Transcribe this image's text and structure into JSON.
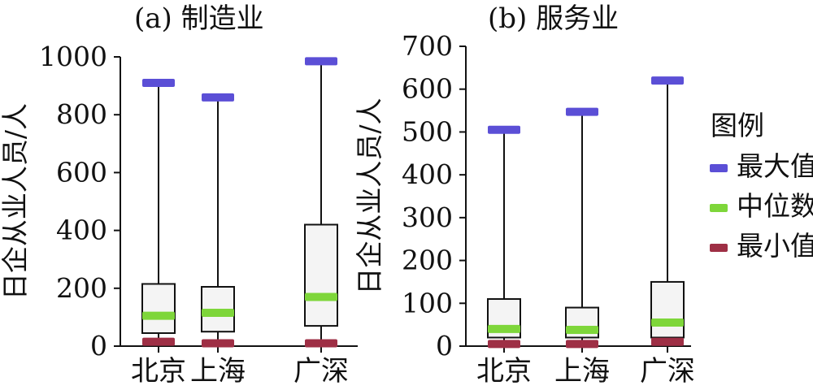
{
  "chart_data": [
    {
      "type": "box",
      "title": "(a) 制造业",
      "ylabel": "日企从业人员/人",
      "categories": [
        "北京",
        "上海",
        "广深"
      ],
      "ylim": [
        0,
        1000
      ],
      "yticks": [
        0,
        200,
        400,
        600,
        800,
        1000
      ],
      "boxes": [
        {
          "category": "北京",
          "min": 15,
          "q1": 45,
          "median": 105,
          "q3": 215,
          "max": 910
        },
        {
          "category": "上海",
          "min": 10,
          "q1": 50,
          "median": 115,
          "q3": 205,
          "max": 860
        },
        {
          "category": "广深",
          "min": 10,
          "q1": 70,
          "median": 170,
          "q3": 420,
          "max": 985
        }
      ]
    },
    {
      "type": "box",
      "title": "(b) 服务业",
      "ylabel": "日企从业人员/人",
      "categories": [
        "北京",
        "上海",
        "广深"
      ],
      "ylim": [
        0,
        700
      ],
      "yticks": [
        0,
        100,
        200,
        300,
        400,
        500,
        600,
        700
      ],
      "boxes": [
        {
          "category": "北京",
          "min": 5,
          "q1": 20,
          "median": 40,
          "q3": 110,
          "max": 505
        },
        {
          "category": "上海",
          "min": 5,
          "q1": 20,
          "median": 38,
          "q3": 90,
          "max": 547
        },
        {
          "category": "广深",
          "min": 10,
          "q1": 20,
          "median": 55,
          "q3": 150,
          "max": 620
        }
      ]
    }
  ],
  "legend": {
    "title": "图例",
    "placement": "right",
    "items": [
      {
        "label": "最大值",
        "color": "#5b4fd6"
      },
      {
        "label": "中位数",
        "color": "#7ed63a"
      },
      {
        "label": "最小值",
        "color": "#9e2f45"
      }
    ]
  },
  "colors": {
    "box_fill": "#f4f4f4",
    "axis": "#111111"
  }
}
